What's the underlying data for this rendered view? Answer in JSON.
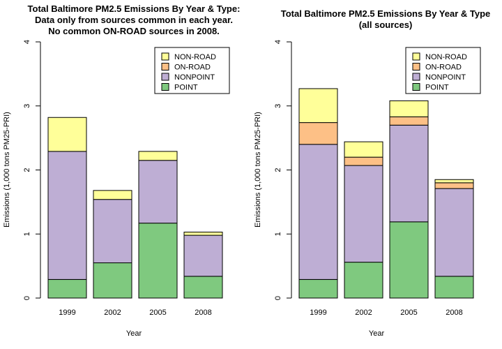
{
  "legend_order": [
    "NON-ROAD",
    "ON-ROAD",
    "NONPOINT",
    "POINT"
  ],
  "colors": {
    "POINT": "#7fc97f",
    "NONPOINT": "#beaed4",
    "ON-ROAD": "#fdc086",
    "NON-ROAD": "#ffff99"
  },
  "chart_data": [
    {
      "type": "bar",
      "stacked": true,
      "title_lines": [
        "Total Baltimore PM2.5 Emissions By Year & Type:",
        "Data only from sources common in each year.",
        "No common ON-ROAD sources in 2008."
      ],
      "xlabel": "Year",
      "ylabel": "Emissions (1,000 tons PM25-PRI)",
      "ylim": [
        0,
        4
      ],
      "yticks": [
        "0",
        "1",
        "2",
        "3",
        "4"
      ],
      "categories": [
        "1999",
        "2002",
        "2005",
        "2008"
      ],
      "series": [
        {
          "name": "POINT",
          "values": [
            0.29,
            0.55,
            1.17,
            0.34
          ]
        },
        {
          "name": "NONPOINT",
          "values": [
            2.0,
            0.99,
            0.98,
            0.64
          ]
        },
        {
          "name": "ON-ROAD",
          "values": [
            0,
            0,
            0,
            0
          ]
        },
        {
          "name": "NON-ROAD",
          "values": [
            0.53,
            0.14,
            0.14,
            0.05
          ]
        }
      ],
      "legend_position": "top-right",
      "grid": false
    },
    {
      "type": "bar",
      "stacked": true,
      "title_lines": [
        "Total Baltimore PM2.5 Emissions By Year & Type",
        "(all sources)"
      ],
      "xlabel": "Year",
      "ylabel": "Emissions (1,000 tons PM25-PRI)",
      "ylim": [
        0,
        4
      ],
      "yticks": [
        "0",
        "1",
        "2",
        "3",
        "4"
      ],
      "categories": [
        "1999",
        "2002",
        "2005",
        "2008"
      ],
      "series": [
        {
          "name": "POINT",
          "values": [
            0.29,
            0.56,
            1.19,
            0.34
          ]
        },
        {
          "name": "NONPOINT",
          "values": [
            2.11,
            1.51,
            1.51,
            1.37
          ]
        },
        {
          "name": "ON-ROAD",
          "values": [
            0.34,
            0.13,
            0.13,
            0.09
          ]
        },
        {
          "name": "NON-ROAD",
          "values": [
            0.53,
            0.24,
            0.25,
            0.05
          ]
        }
      ],
      "legend_position": "top-right",
      "grid": false
    }
  ]
}
